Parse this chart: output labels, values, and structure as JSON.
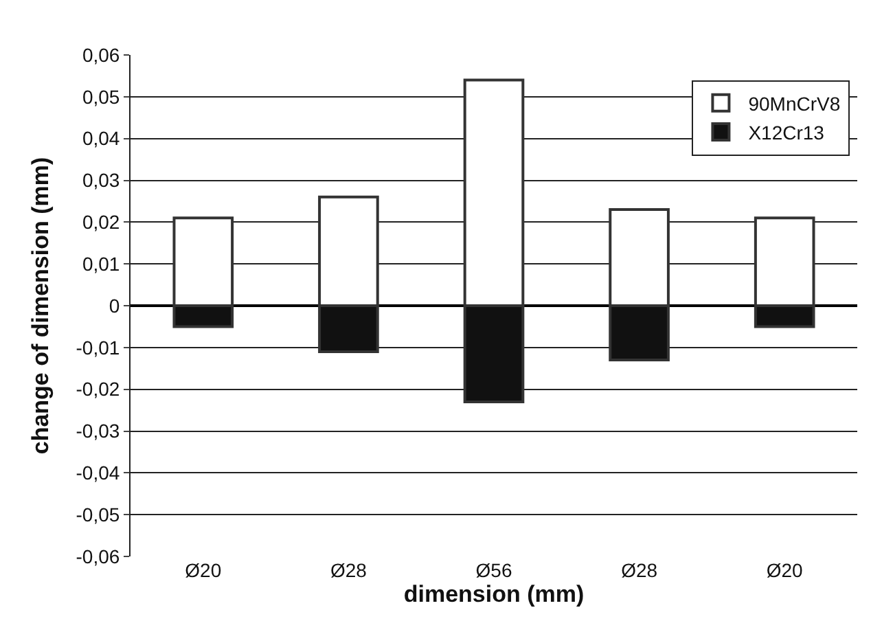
{
  "chart_data": {
    "type": "bar",
    "stacked": true,
    "xlabel": "dimension (mm)",
    "ylabel": "change of dimension (mm)",
    "categories": [
      "Ø20",
      "Ø28",
      "Ø56",
      "Ø28",
      "Ø20"
    ],
    "series": [
      {
        "name": "90MnCrV8",
        "color": "#ffffff",
        "values": [
          0.021,
          0.026,
          0.054,
          0.023,
          0.021
        ]
      },
      {
        "name": "X12Cr13",
        "color": "#111111",
        "values": [
          -0.005,
          -0.011,
          -0.023,
          -0.013,
          -0.005
        ]
      }
    ],
    "ylim": [
      -0.06,
      0.06
    ],
    "yticks": [
      {
        "value": -0.06,
        "label": "-0,06"
      },
      {
        "value": -0.05,
        "label": "-0,05"
      },
      {
        "value": -0.04,
        "label": "-0,04"
      },
      {
        "value": -0.03,
        "label": "-0,03"
      },
      {
        "value": -0.02,
        "label": "-0,02"
      },
      {
        "value": -0.01,
        "label": "-0,01"
      },
      0,
      {
        "value": 0.01,
        "label": "0,01"
      },
      {
        "value": 0.02,
        "label": "0,02"
      },
      {
        "value": 0.03,
        "label": "0,03"
      },
      {
        "value": 0.04,
        "label": "0,04"
      },
      {
        "value": 0.05,
        "label": "0,05"
      },
      {
        "value": 0.06,
        "label": "0,06"
      }
    ],
    "grid": "y",
    "legend": "top right"
  }
}
